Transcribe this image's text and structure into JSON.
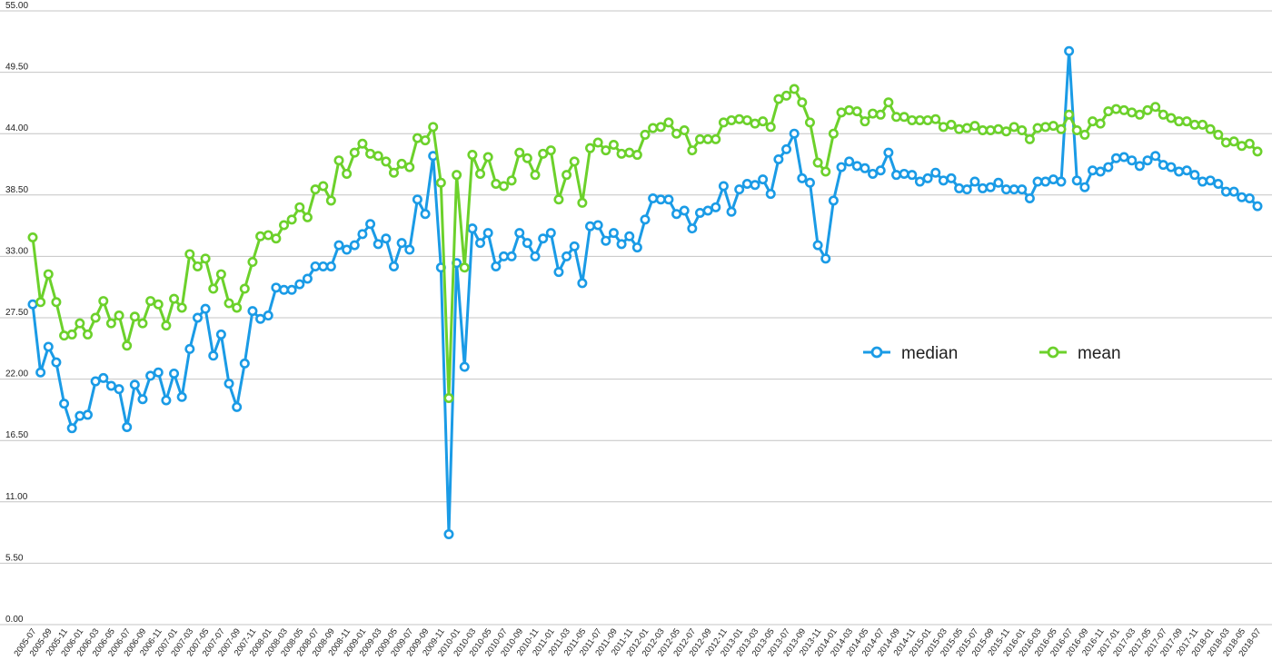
{
  "chart_data": {
    "type": "line",
    "title": "",
    "xlabel": "",
    "ylabel": "",
    "ylim": [
      0,
      55
    ],
    "grid": true,
    "legend_position": "right-middle",
    "y_ticks": [
      "0.00",
      "5.50",
      "11.00",
      "16.50",
      "22.00",
      "27.50",
      "33.00",
      "38.50",
      "44.00",
      "49.50",
      "55.00"
    ],
    "y_tick_values": [
      0,
      5.5,
      11,
      16.5,
      22,
      27.5,
      33,
      38.5,
      44,
      49.5,
      55
    ],
    "x_labels_every": 2,
    "x": [
      "2005-07",
      "2005-08",
      "2005-09",
      "2005-10",
      "2005-11",
      "2005-12",
      "2006-01",
      "2006-02",
      "2006-03",
      "2006-04",
      "2006-05",
      "2006-06",
      "2006-07",
      "2006-08",
      "2006-09",
      "2006-10",
      "2006-11",
      "2006-12",
      "2007-01",
      "2007-02",
      "2007-03",
      "2007-04",
      "2007-05",
      "2007-06",
      "2007-07",
      "2007-08",
      "2007-09",
      "2007-10",
      "2007-11",
      "2007-12",
      "2008-01",
      "2008-02",
      "2008-03",
      "2008-04",
      "2008-05",
      "2008-06",
      "2008-07",
      "2008-08",
      "2008-09",
      "2008-10",
      "2008-11",
      "2008-12",
      "2009-01",
      "2009-02",
      "2009-03",
      "2009-04",
      "2009-05",
      "2009-06",
      "2009-07",
      "2009-08",
      "2009-09",
      "2009-10",
      "2009-11",
      "2009-12",
      "2010-01",
      "2010-02",
      "2010-03",
      "2010-04",
      "2010-05",
      "2010-06",
      "2010-07",
      "2010-08",
      "2010-09",
      "2010-10",
      "2010-11",
      "2010-12",
      "2011-01",
      "2011-02",
      "2011-03",
      "2011-04",
      "2011-05",
      "2011-06",
      "2011-07",
      "2011-08",
      "2011-09",
      "2011-10",
      "2011-11",
      "2011-12",
      "2012-01",
      "2012-02",
      "2012-03",
      "2012-04",
      "2012-05",
      "2012-06",
      "2012-07",
      "2012-08",
      "2012-09",
      "2012-10",
      "2012-11",
      "2012-12",
      "2013-01",
      "2013-02",
      "2013-03",
      "2013-04",
      "2013-05",
      "2013-06",
      "2013-07",
      "2013-08",
      "2013-09",
      "2013-10",
      "2013-11",
      "2013-12",
      "2014-01",
      "2014-02",
      "2014-03",
      "2014-04",
      "2014-05",
      "2014-06",
      "2014-07",
      "2014-08",
      "2014-09",
      "2014-10",
      "2014-11",
      "2014-12",
      "2015-01",
      "2015-02",
      "2015-03",
      "2015-04",
      "2015-05",
      "2015-06",
      "2015-07",
      "2015-08",
      "2015-09",
      "2015-10",
      "2015-11",
      "2015-12",
      "2016-01",
      "2016-02",
      "2016-03",
      "2016-04",
      "2016-05",
      "2016-06",
      "2016-07",
      "2016-08",
      "2016-09",
      "2016-10",
      "2016-11",
      "2016-12",
      "2017-01",
      "2017-02",
      "2017-03",
      "2017-04",
      "2017-05",
      "2017-06",
      "2017-07",
      "2017-08",
      "2017-09",
      "2017-10",
      "2017-11",
      "2017-12",
      "2018-01",
      "2018-02",
      "2018-03",
      "2018-04",
      "2018-05",
      "2018-06",
      "2018-07"
    ],
    "series": [
      {
        "name": "median",
        "color": "#1a9be6",
        "values": [
          28.7,
          22.6,
          24.9,
          23.5,
          19.8,
          17.6,
          18.7,
          18.8,
          21.8,
          22.1,
          21.4,
          21.1,
          17.7,
          21.5,
          20.2,
          22.3,
          22.6,
          20.1,
          22.5,
          20.4,
          24.7,
          27.5,
          28.3,
          24.1,
          26.0,
          21.6,
          19.5,
          23.4,
          28.1,
          27.4,
          27.7,
          30.2,
          30.0,
          30.0,
          30.5,
          31.0,
          32.1,
          32.1,
          32.1,
          34.0,
          33.6,
          34.0,
          35.0,
          35.9,
          34.1,
          34.6,
          32.1,
          34.2,
          33.6,
          38.1,
          36.8,
          42.0,
          32.0,
          8.1,
          32.4,
          23.1,
          35.5,
          34.2,
          35.1,
          32.1,
          33.0,
          33.0,
          35.1,
          34.2,
          33.0,
          34.6,
          35.1,
          31.6,
          33.0,
          33.9,
          30.6,
          35.7,
          35.8,
          34.4,
          35.1,
          34.1,
          34.8,
          33.8,
          36.3,
          38.2,
          38.1,
          38.1,
          36.8,
          37.1,
          35.5,
          36.9,
          37.1,
          37.4,
          39.3,
          37.0,
          39.0,
          39.5,
          39.4,
          39.9,
          38.6,
          41.7,
          42.6,
          44.0,
          40.0,
          39.6,
          34.0,
          32.8,
          38.0,
          41.0,
          41.5,
          41.1,
          40.9,
          40.4,
          40.7,
          42.3,
          40.3,
          40.4,
          40.3,
          39.7,
          40.0,
          40.5,
          39.8,
          40.0,
          39.1,
          39.0,
          39.7,
          39.1,
          39.2,
          39.6,
          39.0,
          39.0,
          39.0,
          38.2,
          39.7,
          39.7,
          39.9,
          39.7,
          51.4,
          39.8,
          39.2,
          40.7,
          40.6,
          41.0,
          41.8,
          41.9,
          41.6,
          41.1,
          41.6,
          42.0,
          41.2,
          41.0,
          40.6,
          40.7,
          40.3,
          39.7,
          39.8,
          39.5,
          38.8,
          38.8,
          38.3,
          38.2,
          37.5
        ]
      },
      {
        "name": "mean",
        "color": "#6cd12b",
        "values": [
          34.7,
          28.9,
          31.4,
          28.9,
          25.9,
          26.0,
          27.0,
          26.0,
          27.5,
          29.0,
          27.0,
          27.7,
          25.0,
          27.6,
          27.0,
          29.0,
          28.7,
          26.8,
          29.2,
          28.4,
          33.2,
          32.1,
          32.8,
          30.1,
          31.4,
          28.8,
          28.4,
          30.1,
          32.5,
          34.8,
          34.9,
          34.6,
          35.8,
          36.3,
          37.4,
          36.5,
          39.0,
          39.3,
          38.0,
          41.6,
          40.4,
          42.3,
          43.1,
          42.2,
          42.0,
          41.5,
          40.5,
          41.3,
          41.0,
          43.6,
          43.4,
          44.6,
          39.6,
          20.3,
          40.3,
          32.0,
          42.1,
          40.4,
          41.9,
          39.5,
          39.3,
          39.8,
          42.3,
          41.8,
          40.3,
          42.2,
          42.5,
          38.1,
          40.3,
          41.5,
          37.8,
          42.7,
          43.2,
          42.5,
          43.0,
          42.2,
          42.3,
          42.1,
          43.9,
          44.5,
          44.6,
          45.0,
          44.0,
          44.3,
          42.5,
          43.5,
          43.5,
          43.5,
          45.0,
          45.2,
          45.3,
          45.2,
          44.9,
          45.1,
          44.6,
          47.1,
          47.4,
          48.0,
          46.8,
          45.0,
          41.4,
          40.6,
          44.0,
          45.9,
          46.1,
          46.0,
          45.1,
          45.8,
          45.7,
          46.8,
          45.5,
          45.5,
          45.2,
          45.2,
          45.2,
          45.3,
          44.6,
          44.8,
          44.4,
          44.5,
          44.7,
          44.3,
          44.3,
          44.4,
          44.2,
          44.6,
          44.3,
          43.5,
          44.5,
          44.6,
          44.7,
          44.4,
          45.7,
          44.3,
          43.9,
          45.1,
          44.9,
          46.0,
          46.2,
          46.1,
          45.9,
          45.7,
          46.1,
          46.4,
          45.7,
          45.4,
          45.1,
          45.1,
          44.8,
          44.8,
          44.4,
          43.9,
          43.2,
          43.3,
          42.9,
          43.1,
          42.4
        ]
      }
    ]
  }
}
